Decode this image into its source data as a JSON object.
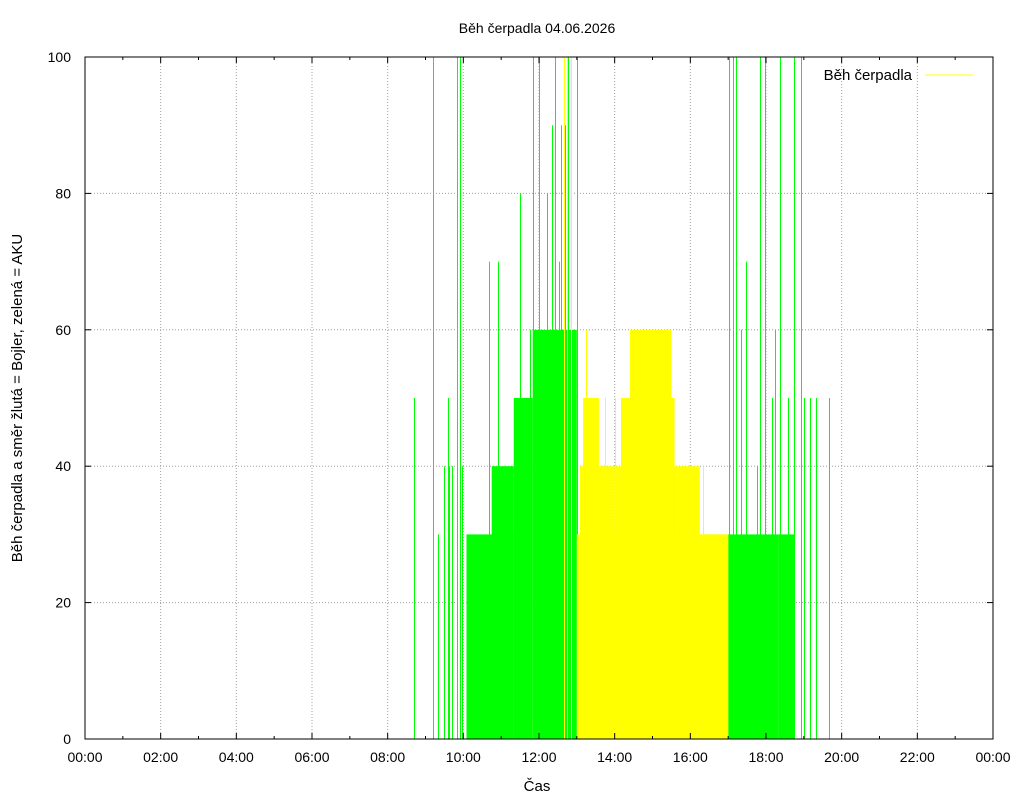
{
  "chart_data": {
    "type": "bar",
    "title": "Běh čerpadla 04.06.2026",
    "xlabel": "Čas",
    "ylabel": "Běh čerpadla a směr žlutá = Bojler, zelená = AKU",
    "xlim": [
      "00:00",
      "24:00"
    ],
    "ylim": [
      0,
      100
    ],
    "x_ticks": [
      "00:00",
      "02:00",
      "04:00",
      "06:00",
      "08:00",
      "10:00",
      "12:00",
      "14:00",
      "16:00",
      "18:00",
      "20:00",
      "22:00",
      "00:00"
    ],
    "y_ticks": [
      "0",
      "20",
      "40",
      "60",
      "80",
      "100"
    ],
    "grid": true,
    "legend": {
      "position": "top-right",
      "entries": [
        {
          "label": "Běh čerpadla",
          "color": "#ffff00"
        }
      ]
    },
    "colors": {
      "bojler": "#ffff00",
      "aku": "#00ff00"
    },
    "series": [
      {
        "key": "aku",
        "color": "#00ff00",
        "spikes": [
          [
            "08:42",
            50
          ],
          [
            "09:12",
            100
          ],
          [
            "09:20",
            30
          ],
          [
            "09:30",
            40
          ],
          [
            "09:35",
            50
          ],
          [
            "09:38",
            40
          ],
          [
            "09:42",
            40
          ],
          [
            "09:50",
            100
          ],
          [
            "09:54",
            100
          ],
          [
            "09:58",
            40
          ],
          [
            "10:40",
            70
          ],
          [
            "10:55",
            70
          ],
          [
            "11:30",
            80
          ],
          [
            "11:45",
            60
          ],
          [
            "11:50",
            100
          ],
          [
            "12:00",
            100
          ],
          [
            "12:12",
            80
          ],
          [
            "12:20",
            90
          ],
          [
            "12:25",
            100
          ],
          [
            "12:32",
            70
          ],
          [
            "12:35",
            90
          ],
          [
            "12:42",
            90
          ],
          [
            "12:46",
            100
          ],
          [
            "12:55",
            60
          ],
          [
            "13:00",
            100
          ],
          [
            "17:02",
            100
          ],
          [
            "17:08",
            100
          ],
          [
            "17:12",
            100
          ],
          [
            "17:20",
            60
          ],
          [
            "17:28",
            70
          ],
          [
            "17:45",
            40
          ],
          [
            "17:50",
            100
          ],
          [
            "17:58",
            100
          ],
          [
            "18:10",
            50
          ],
          [
            "18:15",
            60
          ],
          [
            "18:22",
            100
          ],
          [
            "18:35",
            50
          ],
          [
            "18:45",
            100
          ],
          [
            "18:55",
            100
          ],
          [
            "19:00",
            50
          ],
          [
            "19:10",
            50
          ],
          [
            "19:20",
            50
          ],
          [
            "19:40",
            50
          ]
        ],
        "blocks": [
          [
            "10:05",
            "11:20",
            30
          ],
          [
            "10:45",
            "11:20",
            40
          ],
          [
            "11:20",
            "11:50",
            50
          ],
          [
            "11:50",
            "13:00",
            60
          ],
          [
            "17:00",
            "18:20",
            30
          ],
          [
            "18:20",
            "18:45",
            30
          ]
        ]
      },
      {
        "key": "bojler",
        "color": "#ffff00",
        "spikes": [
          [
            "12:50",
            100
          ],
          [
            "13:15",
            60
          ],
          [
            "13:45",
            50
          ],
          [
            "14:00",
            50
          ],
          [
            "14:25",
            60
          ],
          [
            "14:40",
            60
          ],
          [
            "15:00",
            60
          ],
          [
            "15:25",
            60
          ],
          [
            "15:30",
            50
          ],
          [
            "15:50",
            40
          ],
          [
            "16:05",
            40
          ],
          [
            "16:20",
            40
          ],
          [
            "16:30",
            30
          ],
          [
            "12:40",
            100
          ],
          [
            "12:45",
            100
          ]
        ],
        "blocks": [
          [
            "13:00",
            "17:00",
            30
          ],
          [
            "13:05",
            "14:00",
            40
          ],
          [
            "13:10",
            "13:35",
            50
          ],
          [
            "14:00",
            "15:40",
            40
          ],
          [
            "14:10",
            "15:35",
            50
          ],
          [
            "14:25",
            "15:30",
            60
          ],
          [
            "15:40",
            "16:15",
            40
          ],
          [
            "16:15",
            "17:00",
            30
          ]
        ]
      }
    ]
  }
}
